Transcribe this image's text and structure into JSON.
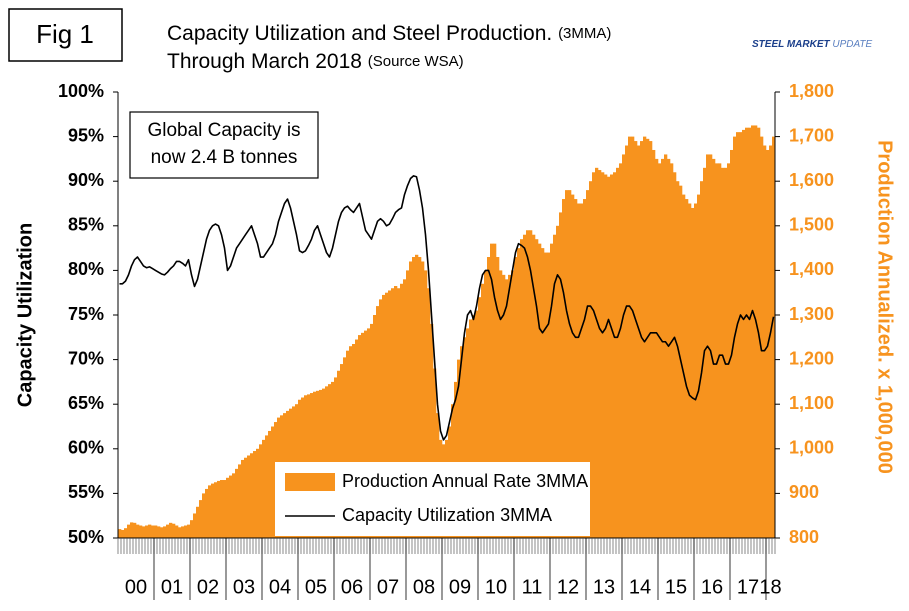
{
  "chart_data": {
    "type": "bar",
    "figure_label": "Fig 1",
    "title": "Capacity Utilization and Steel Production.",
    "title_note": "(3MMA)",
    "subtitle": "Through March 2018",
    "subtitle_note": "(Source WSA)",
    "logo": {
      "bold": "STEEL MARKET",
      "light": "UPDATE"
    },
    "annotation": [
      "Global Capacity is",
      "now 2.4 B tonnes"
    ],
    "y_label": "Capacity Utilization",
    "y2_label": "Production Annualized. x 1,000,000",
    "ylim": [
      50,
      100
    ],
    "yticks": [
      {
        "value": 50,
        "label": "50%"
      },
      {
        "value": 55,
        "label": "55%"
      },
      {
        "value": 60,
        "label": "60%"
      },
      {
        "value": 65,
        "label": "65%"
      },
      {
        "value": 70,
        "label": "70%"
      },
      {
        "value": 75,
        "label": "75%"
      },
      {
        "value": 80,
        "label": "80%"
      },
      {
        "value": 85,
        "label": "85%"
      },
      {
        "value": 90,
        "label": "90%"
      },
      {
        "value": 95,
        "label": "95%"
      },
      {
        "value": 100,
        "label": "100%"
      }
    ],
    "y2lim": [
      800,
      1800
    ],
    "y2ticks": [
      800,
      900,
      {
        "value": 1000,
        "label": "1,000"
      },
      {
        "value": 1100,
        "label": "1,100"
      },
      {
        "value": 1200,
        "label": "1,200"
      },
      {
        "value": 1300,
        "label": "1,300"
      },
      {
        "value": 1400,
        "label": "1,400"
      },
      {
        "value": 1500,
        "label": "1,500"
      },
      {
        "value": 1600,
        "label": "1,600"
      },
      {
        "value": 1700,
        "label": "1,700"
      },
      {
        "value": 1800,
        "label": "1,800"
      }
    ],
    "categories": [
      "00",
      null,
      null,
      null,
      null,
      null,
      null,
      null,
      null,
      null,
      null,
      null,
      "01",
      null,
      null,
      null,
      null,
      null,
      null,
      null,
      null,
      null,
      null,
      null,
      "02",
      null,
      null,
      null,
      null,
      null,
      null,
      null,
      null,
      null,
      null,
      null,
      "03",
      null,
      null,
      null,
      null,
      null,
      null,
      null,
      null,
      null,
      null,
      null,
      "04",
      null,
      null,
      null,
      null,
      null,
      null,
      null,
      null,
      null,
      null,
      null,
      "05",
      null,
      null,
      null,
      null,
      null,
      null,
      null,
      null,
      null,
      null,
      null,
      "06",
      null,
      null,
      null,
      null,
      null,
      null,
      null,
      null,
      null,
      null,
      null,
      "07",
      null,
      null,
      null,
      null,
      null,
      null,
      null,
      null,
      null,
      null,
      null,
      "08",
      null,
      null,
      null,
      null,
      null,
      null,
      null,
      null,
      null,
      null,
      null,
      "09",
      null,
      null,
      null,
      null,
      null,
      null,
      null,
      null,
      null,
      null,
      null,
      "10",
      null,
      null,
      null,
      null,
      null,
      null,
      null,
      null,
      null,
      null,
      null,
      "11",
      null,
      null,
      null,
      null,
      null,
      null,
      null,
      null,
      null,
      null,
      null,
      "12",
      null,
      null,
      null,
      null,
      null,
      null,
      null,
      null,
      null,
      null,
      null,
      "13",
      null,
      null,
      null,
      null,
      null,
      null,
      null,
      null,
      null,
      null,
      null,
      "14",
      null,
      null,
      null,
      null,
      null,
      null,
      null,
      null,
      null,
      null,
      null,
      "15",
      null,
      null,
      null,
      null,
      null,
      null,
      null,
      null,
      null,
      null,
      null,
      "16",
      null,
      null,
      null,
      null,
      null,
      null,
      null,
      null,
      null,
      null,
      null,
      "17",
      null,
      null,
      null,
      null,
      null,
      null,
      null,
      null,
      null,
      null,
      null,
      "18",
      null,
      null
    ],
    "series": [
      {
        "name": "Production Annual Rate 3MMA",
        "type": "bar",
        "axis": "y2",
        "color": "#f7931e",
        "values": [
          820,
          818,
          822,
          830,
          835,
          834,
          830,
          828,
          826,
          828,
          830,
          828,
          828,
          826,
          824,
          826,
          830,
          834,
          832,
          828,
          824,
          826,
          828,
          830,
          840,
          855,
          870,
          885,
          900,
          910,
          918,
          922,
          925,
          928,
          930,
          930,
          935,
          940,
          945,
          955,
          965,
          975,
          980,
          985,
          990,
          995,
          1000,
          1010,
          1020,
          1030,
          1040,
          1050,
          1060,
          1070,
          1075,
          1080,
          1085,
          1090,
          1095,
          1100,
          1110,
          1115,
          1120,
          1122,
          1125,
          1128,
          1130,
          1132,
          1135,
          1140,
          1145,
          1150,
          1160,
          1175,
          1190,
          1205,
          1220,
          1230,
          1235,
          1245,
          1255,
          1260,
          1265,
          1270,
          1280,
          1300,
          1320,
          1335,
          1345,
          1350,
          1355,
          1360,
          1365,
          1360,
          1370,
          1380,
          1400,
          1420,
          1430,
          1435,
          1430,
          1420,
          1400,
          1360,
          1280,
          1180,
          1080,
          1020,
          1010,
          1020,
          1050,
          1100,
          1150,
          1200,
          1230,
          1250,
          1270,
          1290,
          1300,
          1310,
          1340,
          1370,
          1400,
          1430,
          1460,
          1460,
          1430,
          1400,
          1390,
          1380,
          1390,
          1400,
          1430,
          1450,
          1470,
          1480,
          1490,
          1490,
          1480,
          1470,
          1460,
          1450,
          1440,
          1440,
          1460,
          1480,
          1500,
          1530,
          1560,
          1580,
          1580,
          1570,
          1560,
          1550,
          1550,
          1560,
          1580,
          1600,
          1620,
          1630,
          1625,
          1620,
          1615,
          1610,
          1615,
          1620,
          1630,
          1640,
          1660,
          1680,
          1700,
          1700,
          1690,
          1680,
          1690,
          1700,
          1695,
          1690,
          1670,
          1650,
          1640,
          1650,
          1660,
          1650,
          1640,
          1620,
          1600,
          1590,
          1570,
          1560,
          1550,
          1540,
          1550,
          1570,
          1600,
          1630,
          1660,
          1660,
          1650,
          1640,
          1640,
          1630,
          1630,
          1640,
          1670,
          1700,
          1710,
          1710,
          1715,
          1720,
          1720,
          1725,
          1725,
          1720,
          1700,
          1680,
          1670,
          1680,
          1700
        ]
      },
      {
        "name": "Capacity Utilization 3MMA",
        "type": "line",
        "axis": "y",
        "color": "#000000",
        "values": [
          78.5,
          78.5,
          78.8,
          79.5,
          80.5,
          81.2,
          81.5,
          81,
          80.5,
          80.3,
          80.4,
          80.2,
          80,
          79.8,
          79.6,
          79.5,
          79.8,
          80.2,
          80.5,
          81,
          81,
          80.8,
          80.5,
          81.2,
          79.5,
          78.2,
          79,
          80.5,
          82,
          83.5,
          84.5,
          85,
          85.2,
          85,
          84,
          82.5,
          80,
          80.5,
          81.5,
          82.5,
          83,
          83.5,
          84,
          84.5,
          85,
          84,
          83,
          81.5,
          81.5,
          82,
          82.5,
          83,
          84,
          85.5,
          86.5,
          87.5,
          88,
          87,
          85.5,
          84,
          82.2,
          82,
          82.2,
          82.8,
          83.5,
          84.5,
          85,
          84,
          83,
          82,
          81.5,
          82.5,
          84,
          85.5,
          86.5,
          87,
          87.2,
          86.8,
          86.5,
          87,
          87.5,
          86,
          84.5,
          84,
          83.5,
          84.5,
          85.5,
          85.8,
          85.5,
          85,
          85.2,
          85.8,
          86.5,
          86.8,
          87,
          88.5,
          89.5,
          90.3,
          90.6,
          90.5,
          89,
          87,
          84,
          80,
          75,
          70,
          65,
          62,
          61,
          61.5,
          63,
          64.5,
          65.5,
          67,
          70,
          73,
          75,
          75.5,
          74.5,
          76,
          78,
          79.5,
          80,
          80,
          79,
          77,
          75.5,
          74.5,
          75,
          76,
          78,
          80,
          82,
          83,
          82.8,
          82.5,
          81.5,
          80,
          78,
          76,
          73.5,
          73,
          73.5,
          74,
          76,
          78.5,
          79.5,
          79,
          77.5,
          75.5,
          74,
          73,
          72.5,
          72.5,
          73.5,
          74.5,
          76,
          76,
          75.5,
          74.5,
          73.5,
          73,
          73.5,
          74.5,
          73.5,
          72.5,
          72.5,
          73.5,
          75,
          76,
          76,
          75.5,
          74.5,
          73.5,
          72.5,
          72,
          72.5,
          73,
          73,
          73,
          72.5,
          72,
          72,
          71.5,
          72,
          72.5,
          71.5,
          70,
          68.5,
          67,
          66,
          65.7,
          65.5,
          66.5,
          68.5,
          71,
          71.5,
          71,
          69.5,
          69.5,
          70.5,
          70.5,
          69.5,
          69.5,
          70.5,
          72.5,
          74,
          75,
          74.5,
          75,
          74.5,
          75.5,
          74.5,
          73,
          71,
          71,
          71.5,
          73,
          74.8
        ]
      }
    ]
  }
}
